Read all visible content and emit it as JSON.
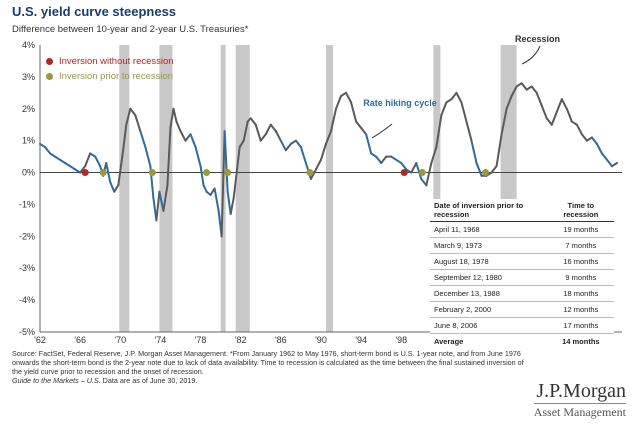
{
  "title": "U.S. yield curve steepness",
  "subtitle": "Difference between 10-year and 2-year U.S. Treasuries*",
  "legend": {
    "red_label": "Inversion without recession",
    "olive_label": "Inversion prior to recession"
  },
  "annotations": {
    "rate_hiking": "Rate hiking cycle",
    "recession": "Recession"
  },
  "colors": {
    "line_gray": "#5a5a5a",
    "line_blue": "#2e6b9e",
    "recession_bar": "#c8c8c8",
    "red_dot": "#b3262a",
    "olive_dot": "#9a9a3c"
  },
  "table": {
    "header": [
      "Date of inversion prior to recession",
      "Time to recession"
    ],
    "rows": [
      [
        "April 11, 1968",
        "19 months"
      ],
      [
        "March 9, 1973",
        "7 months"
      ],
      [
        "August 18, 1978",
        "16 months"
      ],
      [
        "September 12, 1980",
        "9 months"
      ],
      [
        "December 13, 1988",
        "18 months"
      ],
      [
        "February 2, 2000",
        "12 months"
      ],
      [
        "June 8, 2006",
        "17 months"
      ]
    ],
    "average": [
      "Average",
      "14 months"
    ]
  },
  "footnote": "Source: FactSet, Federal Reserve, J.P. Morgan Asset Management. *From January 1962 to May 1976, short-term bond is U.S. 1-year note, and from June 1976 onwards the short-term bond is the 2-year note due to lack of data availability. Time to recession is calculated as the time between the final sustained inversion of the yield curve prior to recession and the onset of recession.",
  "guide_text": "Guide to the Markets – U.S.",
  "data_as_of": " Data are as of June 30, 2019.",
  "logo": {
    "name": "J.P.Morgan",
    "sub": "Asset Management"
  },
  "chart_data": {
    "type": "line",
    "title": "U.S. yield curve steepness",
    "subtitle": "Difference between 10-year and 2-year U.S. Treasuries*",
    "x_ticks": [
      "'62",
      "'66",
      "'70",
      "'74",
      "'78",
      "'82",
      "'86",
      "'90",
      "'94",
      "'98",
      "'02",
      "'06",
      "'10",
      "'14",
      "'18"
    ],
    "y_ticks": [
      "4%",
      "3%",
      "2%",
      "1%",
      "0%",
      "-1%",
      "-2%",
      "-3%",
      "-4%",
      "-5%"
    ],
    "xlim": [
      1962,
      2020
    ],
    "ylim": [
      -5,
      4
    ],
    "recessions": [
      [
        1969.9,
        1970.9
      ],
      [
        1973.9,
        1975.2
      ],
      [
        1980.0,
        1980.5
      ],
      [
        1981.5,
        1982.9
      ],
      [
        1990.5,
        1991.2
      ],
      [
        2001.2,
        2001.9
      ],
      [
        2007.9,
        2009.5
      ]
    ],
    "series": [
      {
        "x": [
          1962.0,
          1962.5,
          1963.0,
          1963.5,
          1964.0,
          1964.5,
          1965.0,
          1965.5,
          1966.0,
          1966.5,
          1967.0,
          1967.5,
          1968.0,
          1968.3,
          1968.6,
          1969.0,
          1969.4,
          1969.8,
          1970.2,
          1970.6,
          1971.0,
          1971.5,
          1972.0,
          1972.5,
          1973.0,
          1973.3,
          1973.6,
          1973.9,
          1974.3,
          1974.7,
          1975.0,
          1975.3,
          1975.6,
          1976.0,
          1976.5,
          1977.0,
          1977.5,
          1978.0,
          1978.3,
          1978.6,
          1979.0,
          1979.4,
          1979.8,
          1980.1,
          1980.4,
          1980.7,
          1981.0,
          1981.3,
          1981.6,
          1981.9,
          1982.3,
          1982.7,
          1983.0,
          1983.5,
          1984.0,
          1984.5,
          1985.0,
          1985.5,
          1986.0,
          1986.5,
          1987.0,
          1987.5,
          1988.0,
          1988.5,
          1989.0,
          1989.5,
          1990.0,
          1990.5,
          1991.0,
          1991.5,
          1992.0,
          1992.5,
          1993.0,
          1993.5,
          1994.0,
          1994.5,
          1995.0,
          1995.5,
          1996.0,
          1996.5,
          1997.0,
          1997.5,
          1998.0,
          1998.5,
          1999.0,
          1999.5,
          2000.0,
          2000.5,
          2001.0,
          2001.5,
          2002.0,
          2002.5,
          2003.0,
          2003.5,
          2004.0,
          2004.5,
          2005.0,
          2005.5,
          2006.0,
          2006.5,
          2007.0,
          2007.5,
          2008.0,
          2008.5,
          2009.0,
          2009.5,
          2010.0,
          2010.5,
          2011.0,
          2011.5,
          2012.0,
          2012.5,
          2013.0,
          2013.5,
          2014.0,
          2014.5,
          2015.0,
          2015.5,
          2016.0,
          2016.5,
          2017.0,
          2017.5,
          2018.0,
          2018.5,
          2019.0,
          2019.5
        ],
        "values": [
          0.9,
          0.8,
          0.6,
          0.5,
          0.4,
          0.3,
          0.2,
          0.1,
          0.0,
          0.2,
          0.6,
          0.5,
          0.2,
          -0.1,
          0.3,
          -0.3,
          -0.6,
          -0.4,
          0.5,
          1.5,
          2.0,
          1.8,
          1.3,
          0.8,
          0.2,
          -0.8,
          -1.5,
          -0.6,
          -1.2,
          -0.4,
          1.4,
          2.0,
          1.6,
          1.3,
          1.0,
          1.2,
          0.8,
          0.2,
          -0.4,
          -0.6,
          -0.7,
          -0.5,
          -1.2,
          -2.0,
          1.3,
          -0.6,
          -1.3,
          -0.8,
          0.0,
          0.8,
          1.0,
          1.6,
          1.7,
          1.5,
          1.0,
          1.2,
          1.5,
          1.3,
          1.0,
          0.7,
          0.9,
          1.0,
          0.8,
          0.3,
          -0.2,
          0.1,
          0.4,
          0.9,
          1.3,
          2.0,
          2.4,
          2.5,
          2.2,
          1.6,
          1.4,
          1.2,
          0.6,
          0.5,
          0.3,
          0.5,
          0.5,
          0.4,
          0.3,
          0.1,
          0.0,
          0.3,
          -0.2,
          -0.4,
          0.3,
          0.8,
          1.8,
          2.2,
          2.3,
          2.5,
          2.2,
          1.6,
          1.0,
          0.3,
          -0.1,
          -0.1,
          0.0,
          0.2,
          1.2,
          2.0,
          2.4,
          2.7,
          2.8,
          2.6,
          2.7,
          2.5,
          2.1,
          1.7,
          1.5,
          1.9,
          2.3,
          2.0,
          1.6,
          1.5,
          1.2,
          1.0,
          1.1,
          0.9,
          0.6,
          0.4,
          0.2,
          0.3
        ]
      }
    ],
    "inversion_without_recession": [
      [
        1966.5,
        0.0
      ],
      [
        1998.3,
        0.0
      ]
    ],
    "inversion_prior_to_recession": [
      [
        1968.3,
        0.0
      ],
      [
        1973.2,
        0.0
      ],
      [
        1978.6,
        0.0
      ],
      [
        1980.7,
        0.0
      ],
      [
        1988.9,
        0.0
      ],
      [
        2000.1,
        0.0
      ],
      [
        2006.4,
        0.0
      ]
    ]
  }
}
